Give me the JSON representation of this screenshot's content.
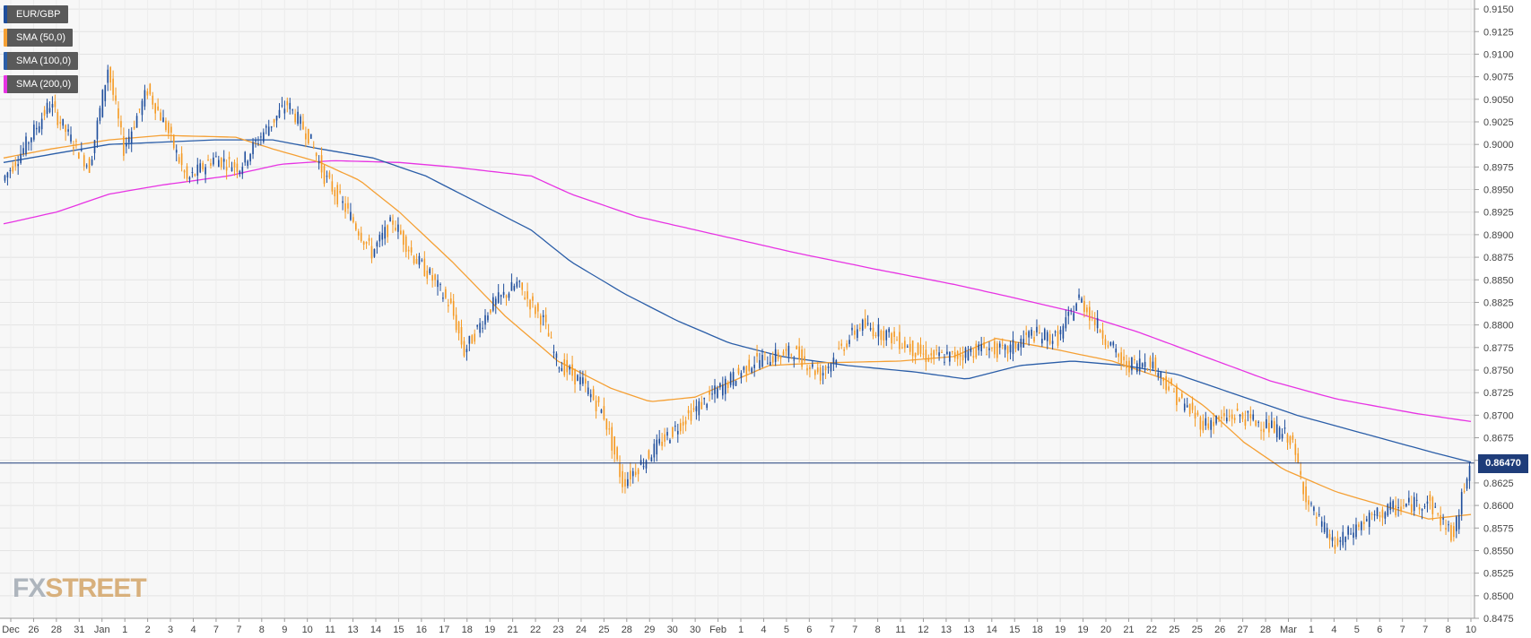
{
  "chart_data": {
    "type": "candlestick",
    "symbol": "EUR/GBP",
    "ylim": [
      0.8475,
      0.916
    ],
    "y_ticks": [
      "0.9150",
      "0.9125",
      "0.9100",
      "0.9075",
      "0.9050",
      "0.9025",
      "0.9000",
      "0.8975",
      "0.8950",
      "0.8925",
      "0.8900",
      "0.8875",
      "0.8850",
      "0.8825",
      "0.8800",
      "0.8775",
      "0.8750",
      "0.8725",
      "0.8700",
      "0.8675",
      "0.8650",
      "0.8625",
      "0.8600",
      "0.8575",
      "0.8550",
      "0.8525",
      "0.8500",
      "0.8475"
    ],
    "x_tick_labels": [
      "Dec",
      "26",
      "28",
      "31",
      "Jan",
      "1",
      "2",
      "3",
      "4",
      "7",
      "7",
      "8",
      "9",
      "10",
      "11",
      "13",
      "14",
      "15",
      "16",
      "17",
      "18",
      "19",
      "21",
      "22",
      "23",
      "24",
      "25",
      "28",
      "29",
      "30",
      "30",
      "Feb",
      "1",
      "4",
      "5",
      "6",
      "7",
      "7",
      "8",
      "11",
      "12",
      "13",
      "13",
      "14",
      "15",
      "18",
      "19",
      "19",
      "20",
      "21",
      "22",
      "25",
      "25",
      "26",
      "27",
      "28",
      "Mar",
      "1",
      "4",
      "5",
      "6",
      "7",
      "7",
      "8",
      "10"
    ],
    "current_price": 0.8647,
    "current_price_label": "0.86470",
    "grid": true,
    "legend_position": "top-left",
    "series": [
      {
        "name": "EUR/GBP",
        "kind": "price",
        "color": "#1f4e9c"
      },
      {
        "name": "SMA (50,0)",
        "kind": "sma",
        "period": 50,
        "color": "#f5a034"
      },
      {
        "name": "SMA (100,0)",
        "kind": "sma",
        "period": 100,
        "color": "#2b5ea8"
      },
      {
        "name": "SMA (200,0)",
        "kind": "sma",
        "period": 200,
        "color": "#e733e3"
      }
    ],
    "sma50_points": [
      [
        0,
        0.8985
      ],
      [
        18,
        0.8995
      ],
      [
        40,
        0.9005
      ],
      [
        60,
        0.901
      ],
      [
        88,
        0.9008
      ],
      [
        102,
        0.8995
      ],
      [
        120,
        0.898
      ],
      [
        135,
        0.896
      ],
      [
        150,
        0.8925
      ],
      [
        170,
        0.887
      ],
      [
        190,
        0.881
      ],
      [
        210,
        0.876
      ],
      [
        230,
        0.873
      ],
      [
        245,
        0.8715
      ],
      [
        262,
        0.872
      ],
      [
        278,
        0.874
      ],
      [
        290,
        0.8755
      ],
      [
        310,
        0.8758
      ],
      [
        340,
        0.876
      ],
      [
        360,
        0.8765
      ],
      [
        376,
        0.8785
      ],
      [
        395,
        0.8775
      ],
      [
        420,
        0.876
      ],
      [
        440,
        0.874
      ],
      [
        455,
        0.871
      ],
      [
        470,
        0.867
      ],
      [
        485,
        0.864
      ],
      [
        505,
        0.8615
      ],
      [
        525,
        0.8598
      ],
      [
        540,
        0.8585
      ],
      [
        556,
        0.859
      ]
    ],
    "sma100_points": [
      [
        0,
        0.898
      ],
      [
        40,
        0.9
      ],
      [
        80,
        0.9005
      ],
      [
        102,
        0.9005
      ],
      [
        120,
        0.8995
      ],
      [
        140,
        0.8985
      ],
      [
        160,
        0.8965
      ],
      [
        180,
        0.8935
      ],
      [
        200,
        0.8905
      ],
      [
        215,
        0.887
      ],
      [
        235,
        0.8835
      ],
      [
        255,
        0.8805
      ],
      [
        275,
        0.878
      ],
      [
        295,
        0.8765
      ],
      [
        320,
        0.8755
      ],
      [
        345,
        0.8748
      ],
      [
        365,
        0.874
      ],
      [
        385,
        0.8755
      ],
      [
        405,
        0.876
      ],
      [
        425,
        0.8755
      ],
      [
        445,
        0.8745
      ],
      [
        465,
        0.8725
      ],
      [
        490,
        0.87
      ],
      [
        515,
        0.868
      ],
      [
        540,
        0.866
      ],
      [
        556,
        0.8648
      ]
    ],
    "sma200_points": [
      [
        0,
        0.8912
      ],
      [
        20,
        0.8925
      ],
      [
        40,
        0.8945
      ],
      [
        60,
        0.8955
      ],
      [
        85,
        0.8965
      ],
      [
        105,
        0.8978
      ],
      [
        125,
        0.8982
      ],
      [
        150,
        0.898
      ],
      [
        170,
        0.8975
      ],
      [
        200,
        0.8965
      ],
      [
        215,
        0.8945
      ],
      [
        240,
        0.892
      ],
      [
        270,
        0.89
      ],
      [
        300,
        0.888
      ],
      [
        330,
        0.8862
      ],
      [
        360,
        0.8845
      ],
      [
        380,
        0.8832
      ],
      [
        405,
        0.8815
      ],
      [
        430,
        0.8792
      ],
      [
        455,
        0.8765
      ],
      [
        480,
        0.8738
      ],
      [
        505,
        0.8718
      ],
      [
        535,
        0.8702
      ],
      [
        556,
        0.8693
      ]
    ],
    "path_points": [
      [
        0,
        0.896
      ],
      [
        8,
        0.8995
      ],
      [
        18,
        0.9045
      ],
      [
        25,
        0.901
      ],
      [
        33,
        0.8975
      ],
      [
        40,
        0.9085
      ],
      [
        46,
        0.8995
      ],
      [
        55,
        0.906
      ],
      [
        62,
        0.902
      ],
      [
        70,
        0.896
      ],
      [
        80,
        0.8985
      ],
      [
        90,
        0.8975
      ],
      [
        98,
        0.901
      ],
      [
        108,
        0.9045
      ],
      [
        116,
        0.901
      ],
      [
        122,
        0.8965
      ],
      [
        132,
        0.892
      ],
      [
        140,
        0.888
      ],
      [
        148,
        0.8915
      ],
      [
        156,
        0.8875
      ],
      [
        162,
        0.8855
      ],
      [
        170,
        0.882
      ],
      [
        175,
        0.877
      ],
      [
        185,
        0.882
      ],
      [
        195,
        0.8845
      ],
      [
        205,
        0.8805
      ],
      [
        210,
        0.876
      ],
      [
        220,
        0.8735
      ],
      [
        228,
        0.87
      ],
      [
        235,
        0.8625
      ],
      [
        248,
        0.8665
      ],
      [
        260,
        0.87
      ],
      [
        270,
        0.8725
      ],
      [
        285,
        0.876
      ],
      [
        300,
        0.877
      ],
      [
        310,
        0.8745
      ],
      [
        325,
        0.88
      ],
      [
        335,
        0.879
      ],
      [
        350,
        0.8765
      ],
      [
        360,
        0.8765
      ],
      [
        372,
        0.8775
      ],
      [
        380,
        0.877
      ],
      [
        390,
        0.879
      ],
      [
        400,
        0.8785
      ],
      [
        408,
        0.883
      ],
      [
        416,
        0.8795
      ],
      [
        425,
        0.8755
      ],
      [
        435,
        0.876
      ],
      [
        445,
        0.872
      ],
      [
        455,
        0.869
      ],
      [
        468,
        0.87
      ],
      [
        478,
        0.869
      ],
      [
        488,
        0.8675
      ],
      [
        495,
        0.86
      ],
      [
        505,
        0.8555
      ],
      [
        515,
        0.858
      ],
      [
        525,
        0.8595
      ],
      [
        540,
        0.8605
      ],
      [
        550,
        0.8565
      ],
      [
        556,
        0.865
      ]
    ],
    "price_annotation_color": "#1f3d7a"
  },
  "legend": {
    "items": [
      {
        "label": "EUR/GBP",
        "color": "#1f4e9c"
      },
      {
        "label": "SMA (50,0)",
        "color": "#f5a034"
      },
      {
        "label": "SMA (100,0)",
        "color": "#2b5ea8"
      },
      {
        "label": "SMA (200,0)",
        "color": "#e733e3"
      }
    ]
  },
  "logo": {
    "fx": "FX",
    "street": "STREET"
  }
}
